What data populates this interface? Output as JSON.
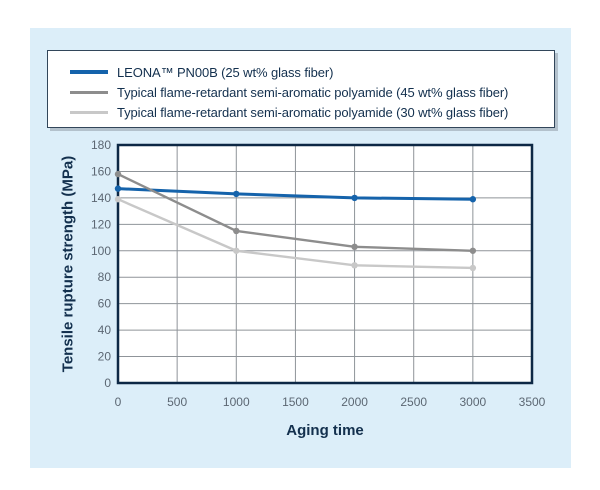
{
  "colors": {
    "panel_bg": "#dceef9",
    "plot_bg": "#ffffff",
    "frame": "#0d2845",
    "grid": "#8f9499",
    "tick_text": "#5c6773",
    "title_text": "#13304e",
    "legend_bg": "#ffffff",
    "legend_border": "#32465a"
  },
  "chart_data": {
    "type": "line",
    "title": "",
    "xlabel": "Aging time",
    "ylabel": "Tensile rupture strength (MPa)",
    "x": [
      0,
      1000,
      2000,
      3000
    ],
    "series": [
      {
        "name": "LEONA™ PN00B (25 wt% glass fiber)",
        "color": "#1563ab",
        "line_width": 3,
        "marker_radius": 3.2,
        "values": [
          147,
          143,
          140,
          139
        ]
      },
      {
        "name": "Typical flame-retardant semi-aromatic polyamide (45 wt% glass fiber)",
        "color": "#8d8d8d",
        "line_width": 2.4,
        "marker_radius": 3.2,
        "values": [
          158,
          115,
          103,
          100
        ]
      },
      {
        "name": "Typical flame-retardant semi-aromatic polyamide (30 wt% glass fiber)",
        "color": "#c8c8c8",
        "line_width": 2.4,
        "marker_radius": 3.2,
        "values": [
          139,
          100,
          89,
          87
        ]
      }
    ],
    "xlim": [
      0,
      3500
    ],
    "ylim": [
      0,
      180
    ],
    "x_ticks": [
      0,
      500,
      1000,
      1500,
      2000,
      2500,
      3000,
      3500
    ],
    "y_ticks": [
      0,
      20,
      40,
      60,
      80,
      100,
      120,
      140,
      160,
      180
    ],
    "grid": true,
    "legend_position": "top"
  }
}
